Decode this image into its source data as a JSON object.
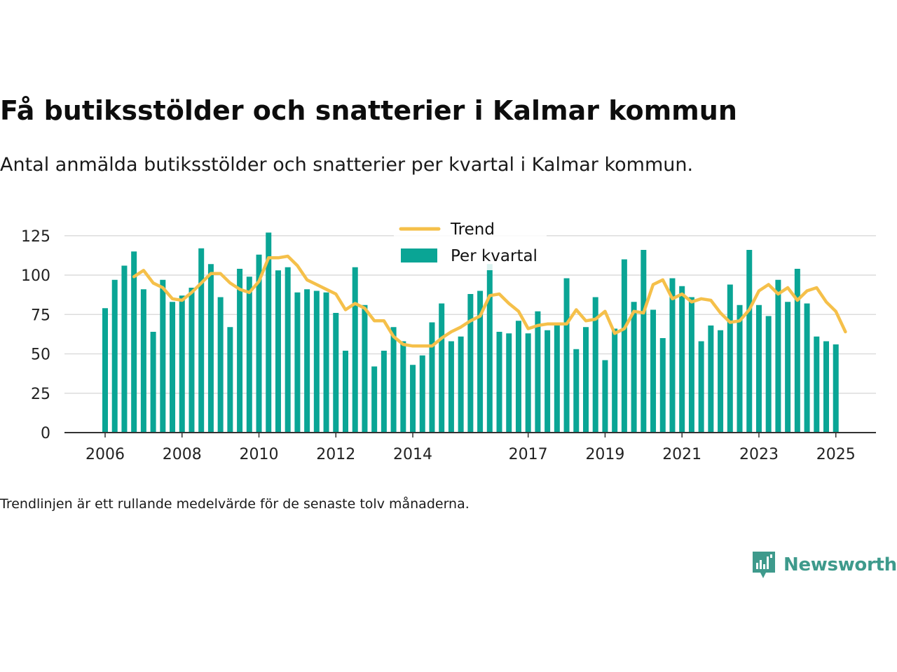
{
  "title": "Få butiksstölder och snatterier i Kalmar kommun",
  "subtitle": "Antal anmälda butiksstölder och snatterier per kvartal i Kalmar kommun.",
  "note": "Trendlinjen är ett rullande medelvärde för de senaste tolv månaderna.",
  "brand": {
    "name": "Newsworthy",
    "color": "#3e9a8c",
    "icon": "newsworthy-logo-icon"
  },
  "chart_data": {
    "type": "bar",
    "x_start": "2006-Q1",
    "x_end": "2025-Q1",
    "x_tick_labels": [
      "2006",
      "2008",
      "2010",
      "2012",
      "2014",
      "2017",
      "2019",
      "2021",
      "2023",
      "2025"
    ],
    "ylim": [
      0,
      130
    ],
    "y_ticks": [
      0,
      25,
      50,
      75,
      100,
      125
    ],
    "grid": true,
    "legend_position": "top-center",
    "series": [
      {
        "name": "Per kvartal",
        "type": "bar",
        "color": "#0aa595",
        "values": [
          79,
          97,
          106,
          115,
          91,
          64,
          97,
          83,
          87,
          92,
          117,
          107,
          86,
          67,
          104,
          99,
          113,
          127,
          103,
          105,
          89,
          91,
          90,
          89,
          76,
          52,
          105,
          81,
          42,
          52,
          67,
          58,
          43,
          49,
          70,
          82,
          58,
          61,
          88,
          90,
          107,
          64,
          63,
          71,
          63,
          77,
          65,
          68,
          98,
          53,
          67,
          86,
          46,
          66,
          110,
          83,
          116,
          78,
          60,
          98,
          93,
          86,
          58,
          68,
          65,
          94,
          81,
          116,
          81,
          74,
          97,
          83,
          104,
          82,
          61,
          58,
          56
        ]
      },
      {
        "name": "Trend",
        "type": "line",
        "color": "#f5c04a",
        "start": "2006-Q4",
        "values": [
          99,
          103,
          95,
          92,
          85,
          84,
          89,
          95,
          101,
          101,
          95,
          91,
          89,
          96,
          111,
          111,
          112,
          106,
          97,
          94,
          91,
          88,
          78,
          82,
          79,
          71,
          71,
          61,
          56,
          55,
          55,
          55,
          60,
          64,
          67,
          71,
          74,
          87,
          88,
          82,
          77,
          66,
          68,
          69,
          69,
          69,
          78,
          71,
          72,
          77,
          63,
          66,
          77,
          76,
          94,
          97,
          85,
          88,
          83,
          85,
          84,
          76,
          70,
          71,
          78,
          90,
          94,
          88,
          92,
          84,
          90,
          92,
          83,
          77,
          64
        ]
      }
    ]
  }
}
